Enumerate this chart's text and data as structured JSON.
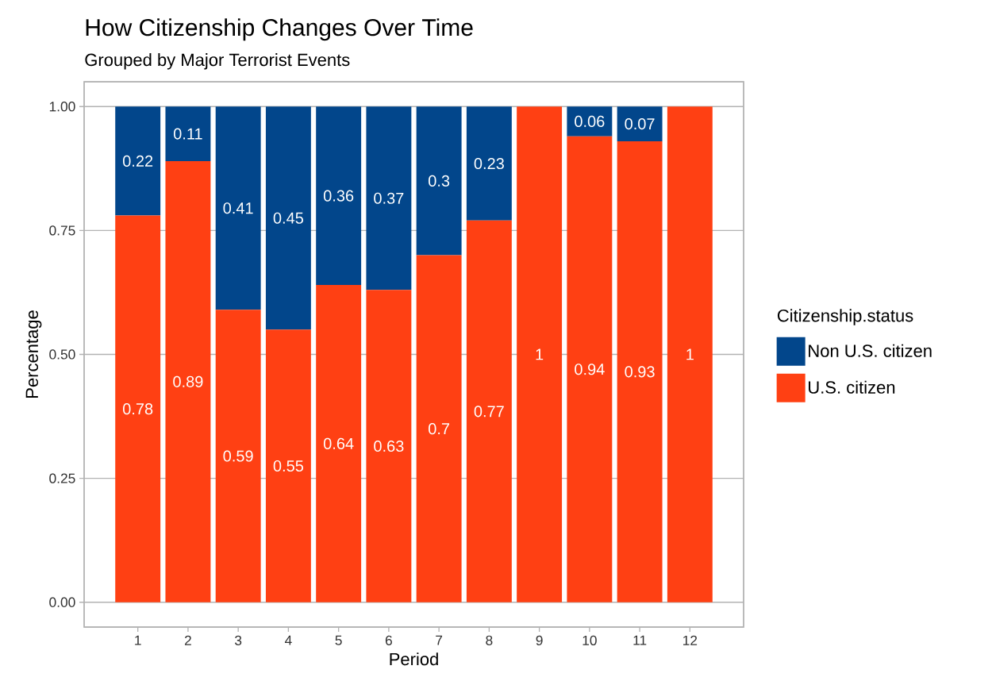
{
  "chart_data": {
    "type": "bar",
    "title": "How Citizenship Changes Over Time",
    "subtitle": "Grouped by Major Terrorist Events",
    "xlabel": "Period",
    "ylabel": "Percentage",
    "legend_title": "Citizenship.status",
    "categories": [
      "1",
      "2",
      "3",
      "4",
      "5",
      "6",
      "7",
      "8",
      "9",
      "10",
      "11",
      "12"
    ],
    "stacked": true,
    "series": [
      {
        "name": "U.S. citizen",
        "color": "#ff4013",
        "values": [
          0.78,
          0.89,
          0.59,
          0.55,
          0.64,
          0.63,
          0.7,
          0.77,
          1,
          0.94,
          0.93,
          1
        ],
        "value_labels": [
          "0.78",
          "0.89",
          "0.59",
          "0.55",
          "0.64",
          "0.63",
          "0.7",
          "0.77",
          "1",
          "0.94",
          "0.93",
          "1"
        ]
      },
      {
        "name": "Non U.S. citizen",
        "color": "#02468b",
        "values": [
          0.22,
          0.11,
          0.41,
          0.45,
          0.36,
          0.37,
          0.3,
          0.23,
          0,
          0.06,
          0.07,
          0
        ],
        "value_labels": [
          "0.22",
          "0.11",
          "0.41",
          "0.45",
          "0.36",
          "0.37",
          "0.3",
          "0.23",
          null,
          "0.06",
          "0.07",
          null
        ]
      }
    ],
    "ylim": [
      -0.05,
      1.05
    ],
    "yticks": [
      {
        "value": 0,
        "label": "0.00"
      },
      {
        "value": 0.25,
        "label": "0.25"
      },
      {
        "value": 0.5,
        "label": "0.50"
      },
      {
        "value": 0.75,
        "label": "0.75"
      },
      {
        "value": 1,
        "label": "1.00"
      }
    ],
    "grid": "y",
    "legend": "right"
  }
}
